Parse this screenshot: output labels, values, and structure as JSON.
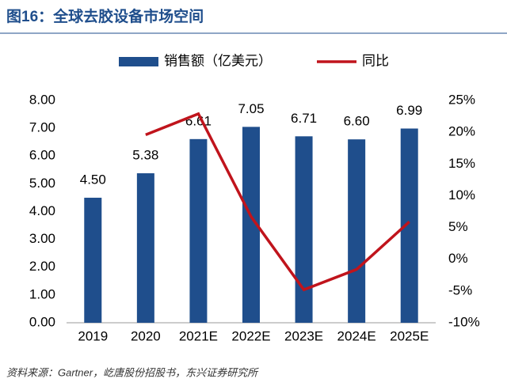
{
  "chart_data": {
    "type": "bar",
    "title": "图16：全球去胶设备市场空间",
    "source": "资料来源：Gartner，屹唐股份招股书，东兴证券研究所",
    "categories": [
      "2019",
      "2020",
      "2021E",
      "2022E",
      "2023E",
      "2024E",
      "2025E"
    ],
    "series": [
      {
        "name": "销售额（亿美元）",
        "type": "bar",
        "color": "#1f4e8c",
        "values": [
          4.5,
          5.38,
          6.61,
          7.05,
          6.71,
          6.6,
          6.99
        ],
        "value_labels": [
          "4.50",
          "5.38",
          "6.61",
          "7.05",
          "6.71",
          "6.60",
          "6.99"
        ]
      },
      {
        "name": "同比",
        "type": "line",
        "axis": "y2",
        "color": "#c0141c",
        "values": [
          null,
          19.6,
          22.9,
          6.7,
          -4.8,
          -1.6,
          5.9
        ]
      }
    ],
    "ylim": [
      0,
      8
    ],
    "yticks": [
      {
        "value": 0,
        "label": "0.00"
      },
      {
        "value": 1,
        "label": "1.00"
      },
      {
        "value": 2,
        "label": "2.00"
      },
      {
        "value": 3,
        "label": "3.00"
      },
      {
        "value": 4,
        "label": "4.00"
      },
      {
        "value": 5,
        "label": "5.00"
      },
      {
        "value": 6,
        "label": "6.00"
      },
      {
        "value": 7,
        "label": "7.00"
      },
      {
        "value": 8,
        "label": "8.00"
      }
    ],
    "y2lim": [
      -10,
      25
    ],
    "y2ticks": [
      {
        "value": -10,
        "label": "-10%"
      },
      {
        "value": -5,
        "label": "-5%"
      },
      {
        "value": 0,
        "label": "0%"
      },
      {
        "value": 5,
        "label": "5%"
      },
      {
        "value": 10,
        "label": "10%"
      },
      {
        "value": 15,
        "label": "15%"
      },
      {
        "value": 20,
        "label": "20%"
      },
      {
        "value": 25,
        "label": "25%"
      }
    ],
    "grid": false
  }
}
